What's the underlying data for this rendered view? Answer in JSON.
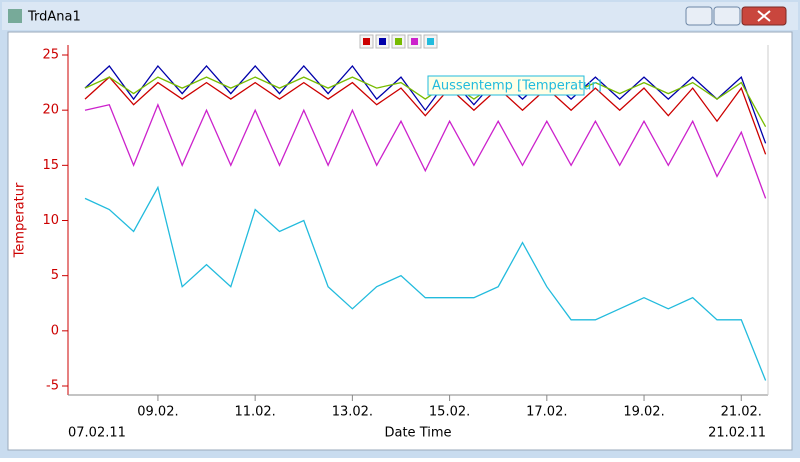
{
  "window": {
    "title": "TrdAna1"
  },
  "chart_data": {
    "type": "line",
    "y_label": "Temperatur",
    "x_label": "Date Time",
    "x_start_label": "07.02.11",
    "x_end_label": "21.02.11",
    "x": [
      7.5,
      8,
      8.5,
      9,
      9.5,
      10,
      10.5,
      11,
      11.5,
      12,
      12.5,
      13,
      13.5,
      14,
      14.5,
      15,
      15.5,
      16,
      16.5,
      17,
      17.5,
      18,
      18.5,
      19,
      19.5,
      20,
      20.5,
      21,
      21.5
    ],
    "xlim": [
      7.15,
      21.55
    ],
    "xticks": [
      {
        "value": 9,
        "label": "09.02."
      },
      {
        "value": 11,
        "label": "11.02."
      },
      {
        "value": 13,
        "label": "13.02."
      },
      {
        "value": 15,
        "label": "15.02."
      },
      {
        "value": 17,
        "label": "17.02."
      },
      {
        "value": 19,
        "label": "19.02."
      },
      {
        "value": 21,
        "label": "21.02."
      }
    ],
    "ylim": [
      -5,
      25
    ],
    "yticks": [
      -5,
      0,
      5,
      10,
      15,
      20,
      25
    ],
    "series": [
      {
        "color": "#cc0000",
        "values": [
          21,
          23,
          20.5,
          22.5,
          21,
          22.5,
          21,
          22.5,
          21,
          22.5,
          21,
          22.5,
          20.5,
          22,
          19.5,
          22,
          20,
          22,
          20,
          22,
          20,
          22,
          20,
          22,
          19.5,
          22,
          19,
          22,
          16
        ]
      },
      {
        "color": "#0000aa",
        "values": [
          22,
          24,
          21,
          24,
          21.5,
          24,
          21.5,
          24,
          21.5,
          24,
          21.5,
          24,
          21,
          23,
          20,
          23,
          20.5,
          23,
          21,
          23,
          21,
          23,
          21,
          23,
          21,
          23,
          21,
          23,
          17
        ]
      },
      {
        "color": "#77bb00",
        "values": [
          22,
          23,
          21.5,
          23,
          22,
          23,
          22,
          23,
          22,
          23,
          22,
          23,
          22,
          22.5,
          21,
          22.5,
          21,
          22.5,
          21.5,
          22.5,
          21.5,
          22.5,
          21.5,
          22.5,
          21.5,
          22.5,
          21,
          22.5,
          18.5
        ]
      },
      {
        "color": "#cc22cc",
        "values": [
          20,
          20.5,
          15,
          20.5,
          15,
          20,
          15,
          20,
          15,
          20,
          15,
          20,
          15,
          19,
          14.5,
          19,
          15,
          19,
          15,
          19,
          15,
          19,
          15,
          19,
          15,
          19,
          14,
          18,
          12
        ]
      },
      {
        "name": "Aussentemp [Temperatur]",
        "color": "#22bbdd",
        "values": [
          12,
          11,
          9,
          13,
          4,
          6,
          4,
          11,
          9,
          10,
          4,
          2,
          4,
          5,
          3,
          3,
          3,
          4,
          8,
          4,
          1,
          1,
          2,
          3,
          2,
          3,
          1,
          1,
          -4.5
        ]
      }
    ]
  }
}
